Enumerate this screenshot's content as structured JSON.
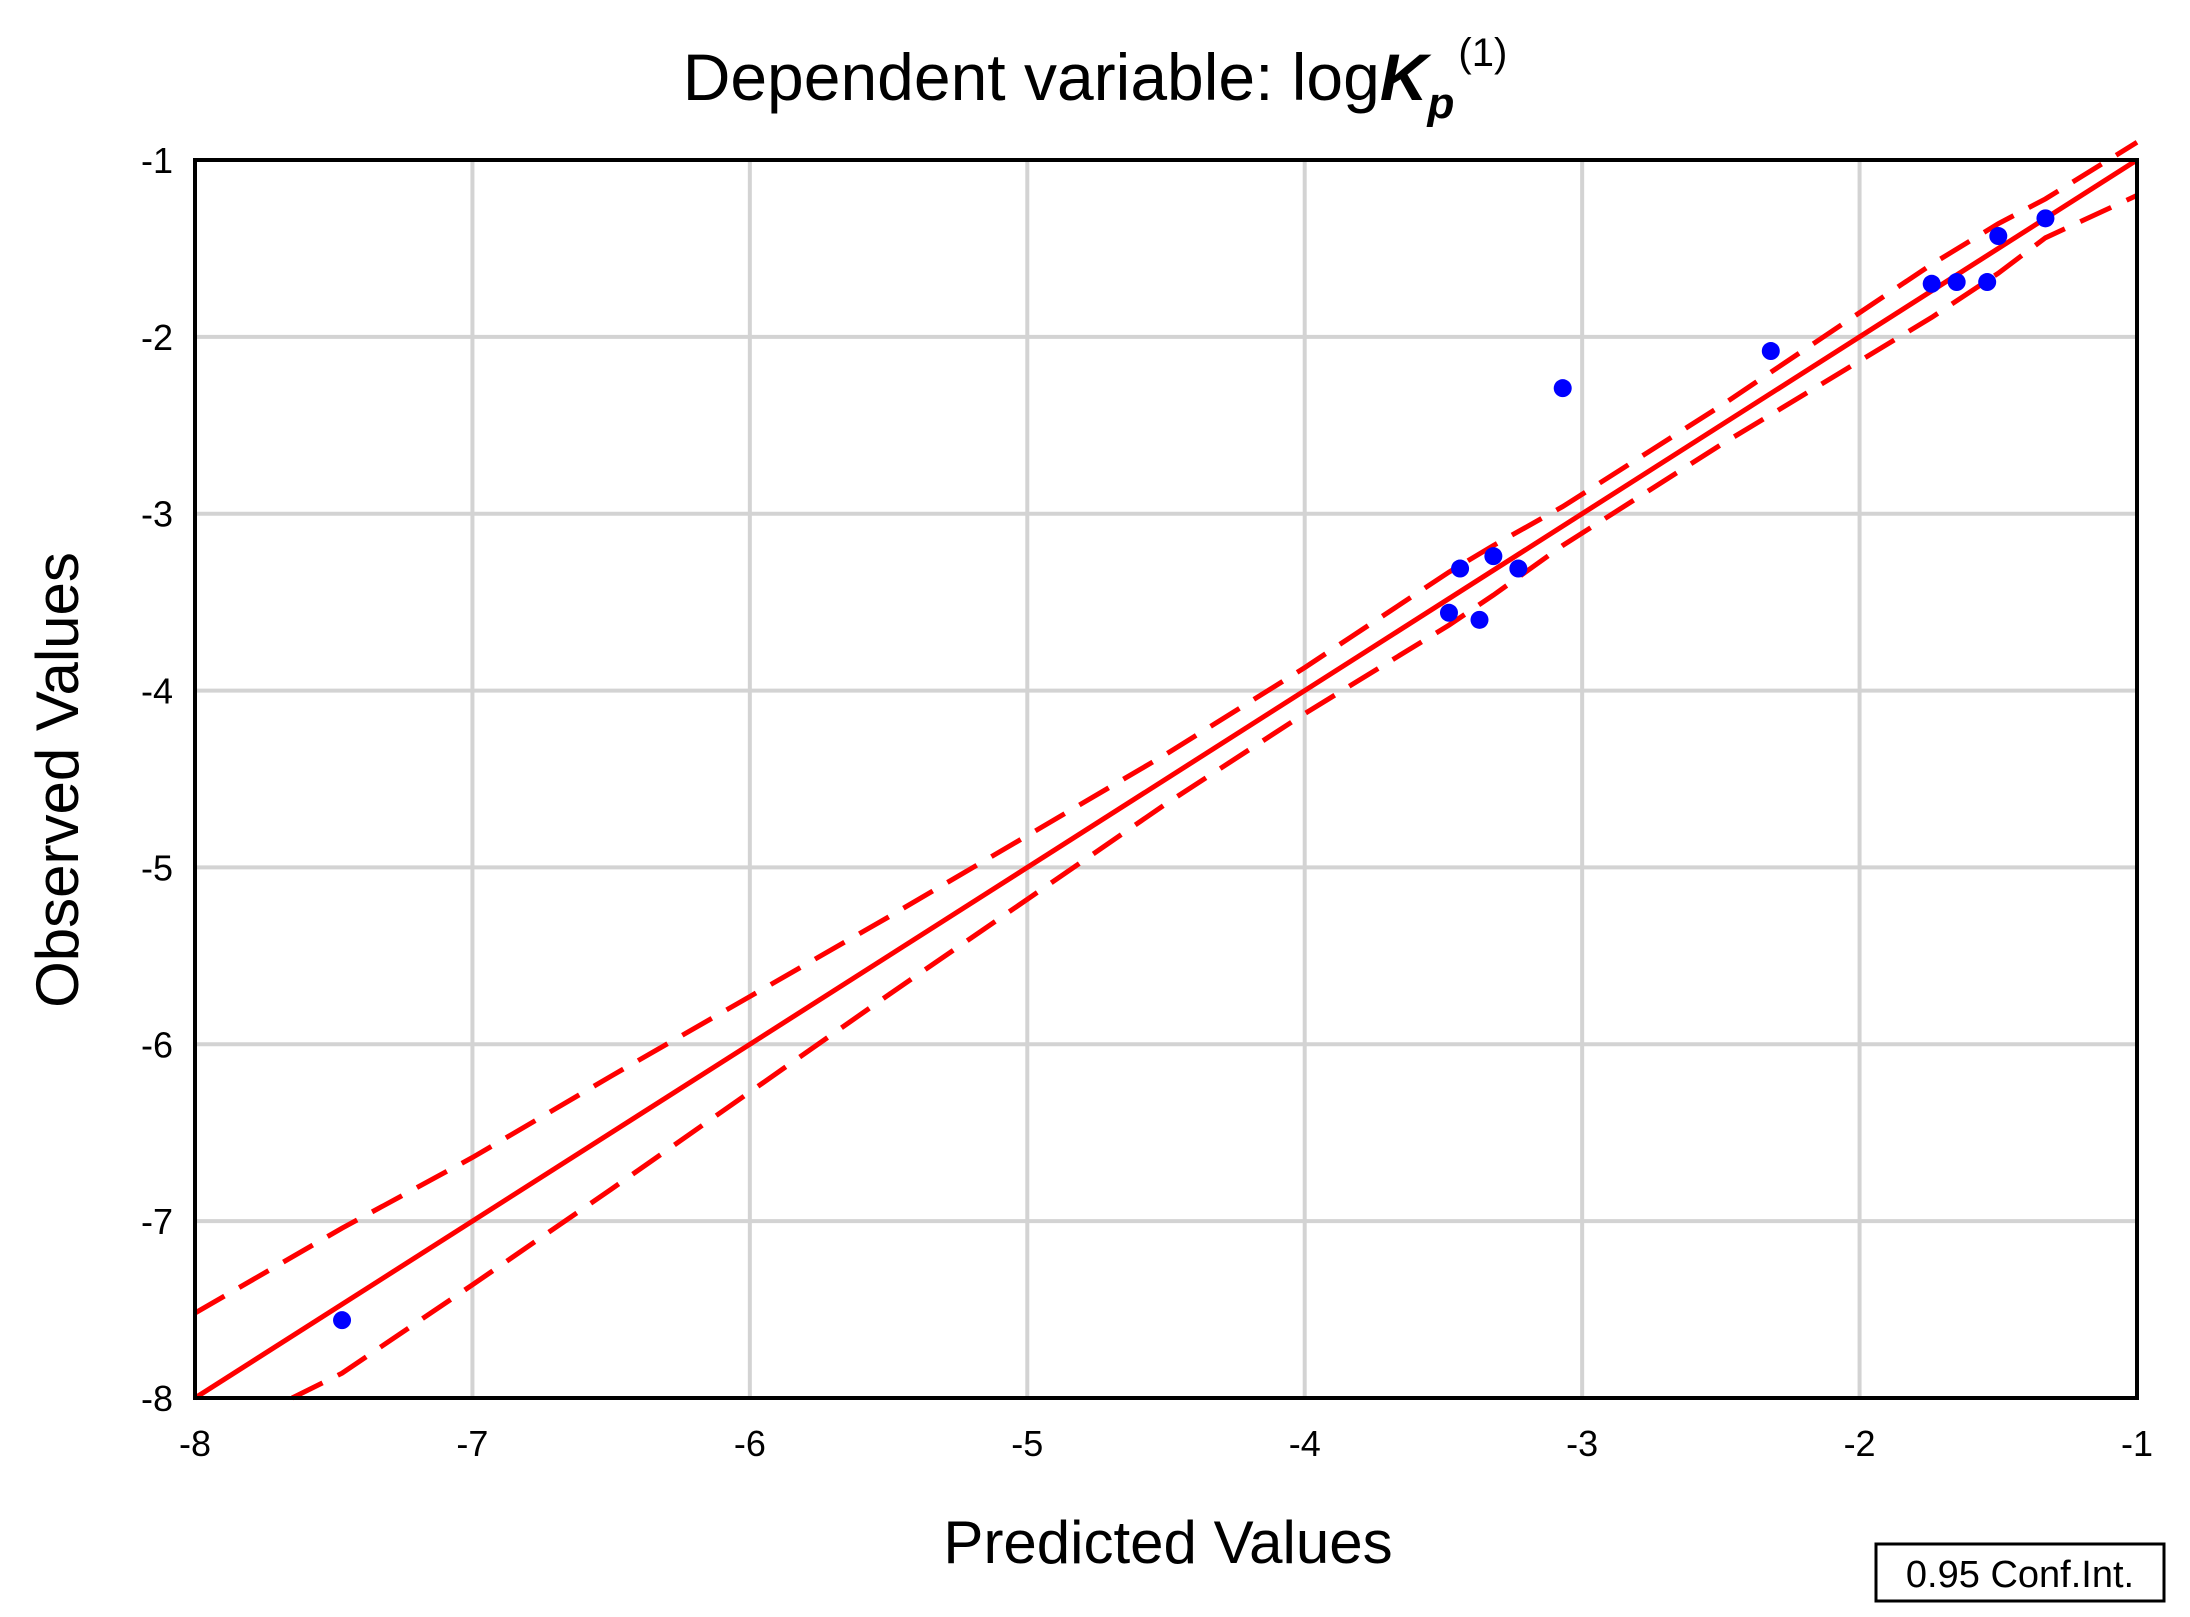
{
  "chart_data": {
    "type": "scatter",
    "title": {
      "prefix": "Dependent variable: log",
      "symbol": "K",
      "subscript": "p",
      "superscript": "(1)"
    },
    "xlabel": "Predicted Values",
    "ylabel": "Observed Values",
    "xlim": [
      -8,
      -1
    ],
    "ylim": [
      -8,
      -1
    ],
    "x_ticks": [
      -8,
      -7,
      -6,
      -5,
      -4,
      -3,
      -2,
      -1
    ],
    "y_ticks": [
      -8,
      -7,
      -6,
      -5,
      -4,
      -3,
      -2,
      -1
    ],
    "grid": true,
    "legend": {
      "label": "0.95 Conf.Int.",
      "position": "bottom-right"
    },
    "colors": {
      "points": "#0000ff",
      "fit": "#ff0000",
      "grid": "#d3d3d3",
      "axes": "#000000"
    },
    "points": [
      {
        "x": -7.47,
        "y": -7.56
      },
      {
        "x": -3.48,
        "y": -3.56
      },
      {
        "x": -3.44,
        "y": -3.31
      },
      {
        "x": -3.37,
        "y": -3.6
      },
      {
        "x": -3.32,
        "y": -3.24
      },
      {
        "x": -3.23,
        "y": -3.31
      },
      {
        "x": -3.07,
        "y": -2.29
      },
      {
        "x": -2.32,
        "y": -2.08
      },
      {
        "x": -1.74,
        "y": -1.7
      },
      {
        "x": -1.65,
        "y": -1.69
      },
      {
        "x": -1.54,
        "y": -1.69
      },
      {
        "x": -1.5,
        "y": -1.43
      },
      {
        "x": -1.33,
        "y": -1.33
      }
    ],
    "fit_line": {
      "x": [
        -8,
        -1
      ],
      "y": [
        -8,
        -1
      ]
    },
    "confidence_upper": {
      "x": [
        -8,
        -7.47,
        -7,
        -6.5,
        -6,
        -5.5,
        -5,
        -4.5,
        -4,
        -3.48,
        -3.32,
        -3.07,
        -2.5,
        -2.32,
        -1.74,
        -1.5,
        -1.33,
        -1
      ],
      "y": [
        -7.52,
        -7.04,
        -6.64,
        -6.18,
        -5.73,
        -5.28,
        -4.82,
        -4.36,
        -3.87,
        -3.33,
        -3.18,
        -2.96,
        -2.39,
        -2.2,
        -1.59,
        -1.36,
        -1.22,
        -0.9
      ]
    },
    "confidence_lower": {
      "x": [
        -7.65,
        -7.47,
        -7,
        -6.5,
        -6,
        -5.5,
        -5,
        -4.5,
        -4,
        -3.48,
        -3.32,
        -3.07,
        -2.5,
        -2.32,
        -1.74,
        -1.5,
        -1.33,
        -1
      ],
      "y": [
        -8.0,
        -7.86,
        -7.36,
        -6.82,
        -6.27,
        -5.72,
        -5.18,
        -4.64,
        -4.13,
        -3.63,
        -3.46,
        -3.18,
        -2.61,
        -2.44,
        -1.89,
        -1.64,
        -1.44,
        -1.2
      ]
    }
  }
}
